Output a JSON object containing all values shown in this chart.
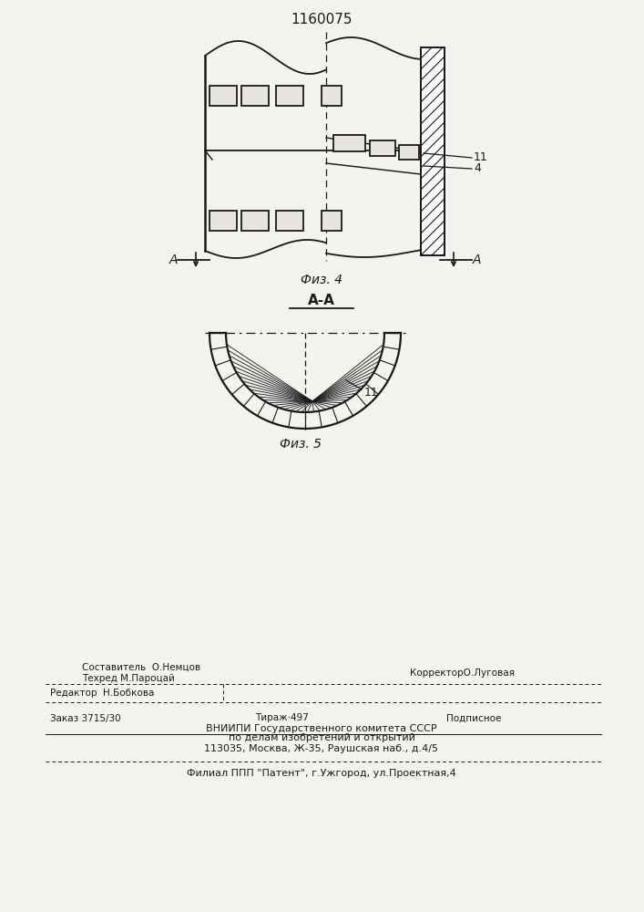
{
  "title": "1160075",
  "bg_color": "#f5f3f0",
  "line_color": "#1a1a1a",
  "fig4_label": "Физ. 4",
  "fig5_label": "Физ. 5",
  "aa_label": "A-A",
  "label_11": "11",
  "label_4": "4",
  "footer_redaktor": "Редактор  Н.Бобкова",
  "footer_sostavitel": "Составитель  О.Немцов",
  "footer_tehred": "Техред М.Пароцай",
  "footer_korrektor": "КорректорО.Луговая",
  "footer_zakaz": "Заказ 3715/30",
  "footer_tirazh": "Тираж·497",
  "footer_podpisnoe": "Подписное",
  "footer_vniip1": "ВНИИПИ Государственного комитета СССР",
  "footer_vniip2": "по делам изобретений и открытий",
  "footer_vniip3": "113035, Москва, Ж-35, Раушская наб., д.4/5",
  "footer_filial": "Филиал ППП \"Патент\", г.Ужгород, ул.Проектная,4"
}
